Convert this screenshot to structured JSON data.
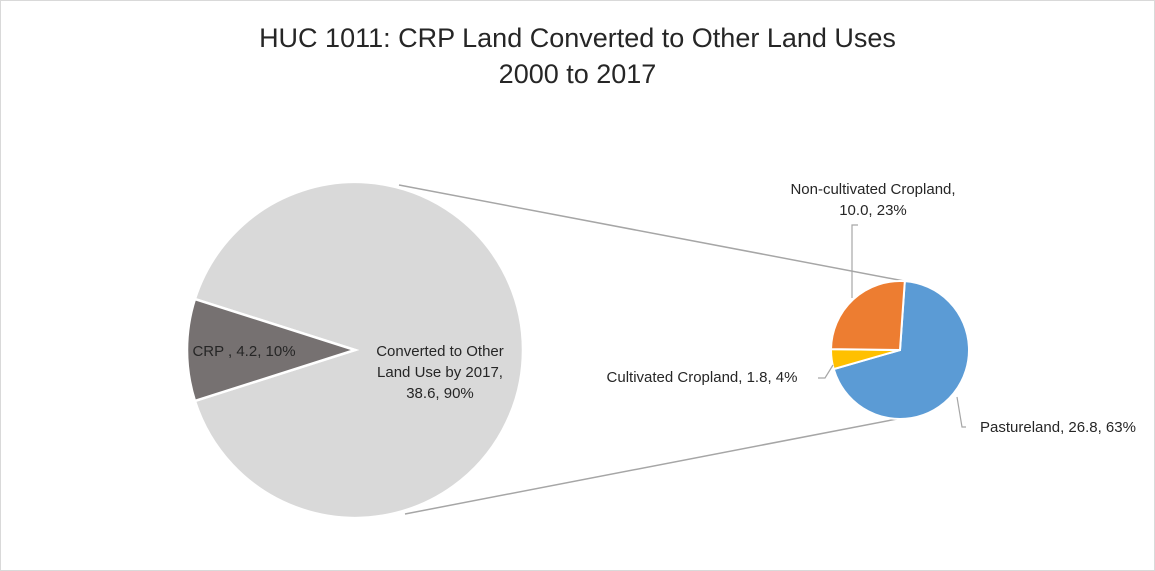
{
  "chart_data": {
    "type": "pie",
    "subtype": "pie-of-pie",
    "title": "HUC 1011: CRP Land Converted to Other Land Uses",
    "subtitle": "2000 to 2017",
    "primary": {
      "slices": [
        {
          "name": "Converted to Other Land Use by 2017",
          "value": 38.6,
          "percent": 90,
          "color": "#d9d9d9",
          "label_lines": [
            "Converted to Other",
            "Land Use by 2017,",
            "38.6, 90%"
          ]
        },
        {
          "name": "CRP",
          "value": 4.2,
          "percent": 10,
          "color": "#767171",
          "label_lines": [
            "CRP , 4.2, 10%"
          ]
        }
      ]
    },
    "secondary": {
      "slices": [
        {
          "name": "Pastureland",
          "value": 26.8,
          "percent": 63,
          "color": "#5b9bd5",
          "label_lines": [
            "Pastureland, 26.8, 63%"
          ]
        },
        {
          "name": "Cultivated Cropland",
          "value": 1.8,
          "percent": 4,
          "color": "#ffc000",
          "label_lines": [
            "Cultivated Cropland, 1.8, 4%"
          ]
        },
        {
          "name": "Non-cultivated Cropland",
          "value": 10.0,
          "percent": 23,
          "color": "#ed7d31",
          "label_lines": [
            "Non-cultivated Cropland,",
            "10.0, 23%"
          ]
        }
      ]
    },
    "connector_color": "#a6a6a6",
    "leader_color": "#a6a6a6"
  }
}
